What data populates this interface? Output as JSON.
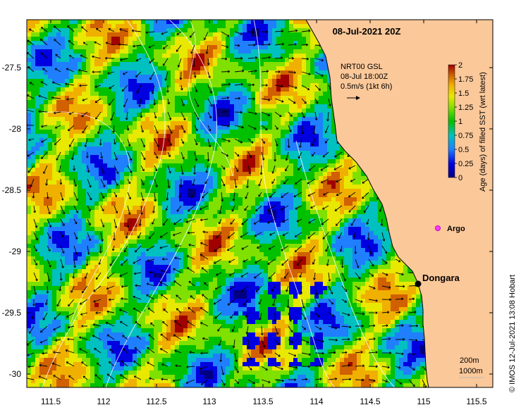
{
  "title": "08-Jul-2021 20Z",
  "current_info": {
    "line1": "NRT00 GSL",
    "line2": "08-Jul 18:00Z",
    "line3": "0.5m/s (1kt 6h)"
  },
  "colorbar": {
    "label": "Age (days) of filled SST (wrt latest)",
    "ticks": [
      "2",
      "1.75",
      "1.5",
      "1.25",
      "1",
      "0.75",
      "0.5",
      "0.25",
      "0"
    ],
    "colors": [
      "#000080",
      "#0000e0",
      "#1f7fff",
      "#00c0c0",
      "#00c000",
      "#80e000",
      "#e8e800",
      "#f0b000",
      "#d06000",
      "#a00000"
    ]
  },
  "axes": {
    "x_ticks": [
      "111.5",
      "112",
      "112.5",
      "113",
      "113.5",
      "114",
      "114.5",
      "115",
      "115.5"
    ],
    "y_ticks": [
      "-27.5",
      "-28",
      "-28.5",
      "-29",
      "-29.5",
      "-30"
    ]
  },
  "places": {
    "dongara": "Dongara",
    "argo": "Argo"
  },
  "contours": {
    "label1": "200m",
    "label2": "1000m"
  },
  "credit": "© IMOS 12-Jul-2021 13:08 Hobart",
  "land_color": "#fbc89a"
}
